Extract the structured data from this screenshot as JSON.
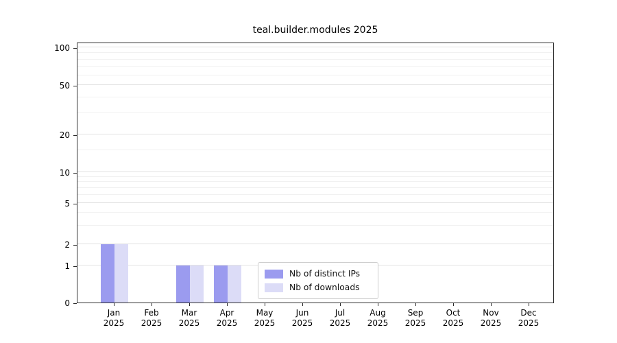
{
  "title": "teal.builder.modules 2025",
  "chart_data": {
    "type": "bar",
    "title": "teal.builder.modules 2025",
    "scale": "symlog",
    "categories": [
      "Jan",
      "Feb",
      "Mar",
      "Apr",
      "May",
      "Jun",
      "Jul",
      "Aug",
      "Sep",
      "Oct",
      "Nov",
      "Dec"
    ],
    "year_label": "2025",
    "series": [
      {
        "name": "Nb of distinct IPs",
        "key": "distinct-ips",
        "color": "#9b9bef",
        "values": [
          2,
          0,
          1,
          1,
          0,
          0,
          0,
          0,
          0,
          0,
          0,
          0
        ]
      },
      {
        "name": "Nb of downloads",
        "key": "downloads",
        "color": "#dcdcf7",
        "values": [
          2,
          0,
          1,
          1,
          0,
          0,
          0,
          0,
          0,
          0,
          0,
          0
        ]
      }
    ],
    "y_ticks": [
      0,
      1,
      2,
      5,
      10,
      20,
      50,
      100
    ],
    "y_minor_ticks": [
      3,
      4,
      6,
      7,
      8,
      9,
      15,
      30,
      40,
      60,
      70,
      80,
      90
    ],
    "ylim": [
      0,
      110
    ],
    "grid": "on",
    "legend_position": "lower center"
  },
  "colors": {
    "distinct_ips": "#9b9bef",
    "downloads": "#dcdcf7",
    "grid_major": "#e2e2e2",
    "grid_minor": "#f1f1f1",
    "spine": "#2b2b2b"
  }
}
